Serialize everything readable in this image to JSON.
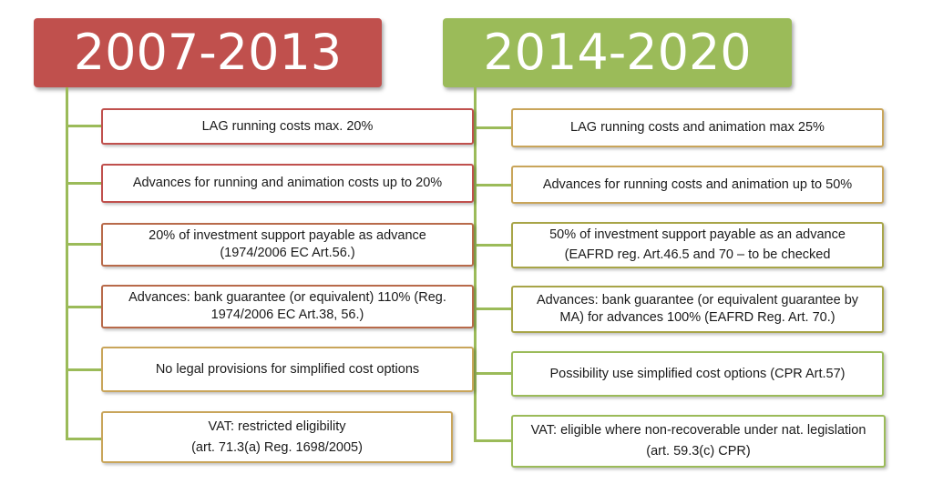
{
  "left_column": {
    "title": "2007-2013",
    "items": [
      {
        "lines": [
          "LAG running costs max. 20%"
        ]
      },
      {
        "lines": [
          "Advances for running and animation costs up to 20%"
        ]
      },
      {
        "lines": [
          "20% of investment support payable as advance",
          "(1974/2006 EC Art.56.)"
        ]
      },
      {
        "lines": [
          "Advances: bank guarantee (or equivalent) 110% (Reg.",
          "1974/2006 EC Art.38, 56.)"
        ]
      },
      {
        "lines": [
          "No legal provisions for simplified cost options"
        ]
      },
      {
        "lines": [
          "VAT: restricted eligibility",
          "(art. 71.3(a) Reg. 1698/2005)"
        ]
      }
    ]
  },
  "right_column": {
    "title": "2014-2020",
    "items": [
      {
        "lines": [
          "LAG running costs and animation max 25%"
        ]
      },
      {
        "lines": [
          "Advances for running costs and animation up to 50%"
        ]
      },
      {
        "lines": [
          "50% of investment support payable as an advance",
          "(EAFRD reg. Art.46.5 and 70 – to be checked"
        ]
      },
      {
        "lines": [
          "Advances: bank guarantee (or equivalent guarantee by",
          "MA) for advances 100% (EAFRD Reg. Art. 70.)"
        ]
      },
      {
        "lines": [
          "Possibility use simplified cost options (CPR Art.57)"
        ]
      },
      {
        "lines": [
          "VAT: eligible  where non-recoverable under nat. legislation",
          "(art. 59.3(c) CPR)"
        ]
      }
    ]
  },
  "colors": {
    "left_header": "#c0504d",
    "right_header": "#9bbb59",
    "connector": "#9bbb59"
  }
}
